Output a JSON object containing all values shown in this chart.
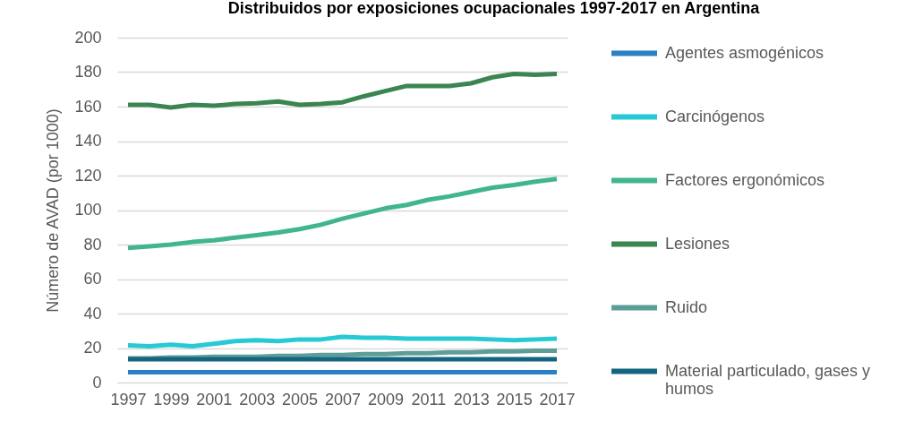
{
  "chart_data": {
    "type": "line",
    "title": "Distribuidos por exposiciones ocupacionales 1997-2017 en Argentina",
    "ylabel": "Número de AVAD (por 1000)",
    "x": [
      1997,
      1998,
      1999,
      2000,
      2001,
      2002,
      2003,
      2004,
      2005,
      2006,
      2007,
      2008,
      2009,
      2010,
      2011,
      2012,
      2013,
      2014,
      2015,
      2016,
      2017
    ],
    "xlim": [
      1996.5,
      2017.5
    ],
    "xticks": [
      1997,
      1999,
      2001,
      2003,
      2005,
      2007,
      2009,
      2011,
      2013,
      2015,
      2017
    ],
    "ylim": [
      0,
      200
    ],
    "yticks": [
      0,
      20,
      40,
      60,
      80,
      100,
      120,
      140,
      160,
      180,
      200
    ],
    "grid": "y",
    "legend": "right",
    "series": [
      {
        "name": "Agentes asmogénicos",
        "color": "#2a7fc5",
        "values": [
          6,
          6,
          6,
          6,
          6,
          6,
          6,
          6,
          6,
          6,
          6,
          6,
          6,
          6,
          6,
          6,
          6,
          6,
          6,
          6,
          6
        ]
      },
      {
        "name": "Carcinógenos",
        "color": "#26c9d4",
        "values": [
          21.5,
          21,
          22,
          21,
          22.5,
          24,
          24.5,
          24,
          25,
          25,
          26.5,
          26,
          26,
          25.5,
          25.5,
          25.5,
          25.5,
          25,
          24.5,
          25,
          25.5
        ]
      },
      {
        "name": "Factores ergonómicos",
        "color": "#40b58f",
        "values": [
          78,
          79,
          80,
          81.5,
          82.5,
          84,
          85.5,
          87,
          89,
          91.5,
          95,
          98,
          101,
          103,
          106,
          108,
          110.5,
          113,
          114.5,
          116.5,
          118
        ]
      },
      {
        "name": "Lesiones",
        "color": "#3a8550",
        "values": [
          161,
          161,
          159.5,
          161,
          160.5,
          161.5,
          162,
          163,
          161,
          161.5,
          162.5,
          166,
          169,
          172,
          172,
          172,
          173.5,
          177,
          179,
          178.5,
          179
        ]
      },
      {
        "name": "Ruido",
        "color": "#5e9e98",
        "values": [
          14,
          14,
          14.5,
          14.5,
          15,
          15,
          15,
          15.5,
          15.5,
          16,
          16,
          16.5,
          16.5,
          17,
          17,
          17.5,
          17.5,
          18,
          18,
          18.5,
          18.5
        ]
      },
      {
        "name": "Material particulado, gases y humos",
        "color": "#14657f",
        "values": [
          13.5,
          13.5,
          13.5,
          13.5,
          13.5,
          13.5,
          13.5,
          13.5,
          13.5,
          13.5,
          13.5,
          13.5,
          13.5,
          13.5,
          13.5,
          13.5,
          13.5,
          13.5,
          13.5,
          13.5,
          13.5
        ]
      }
    ]
  }
}
